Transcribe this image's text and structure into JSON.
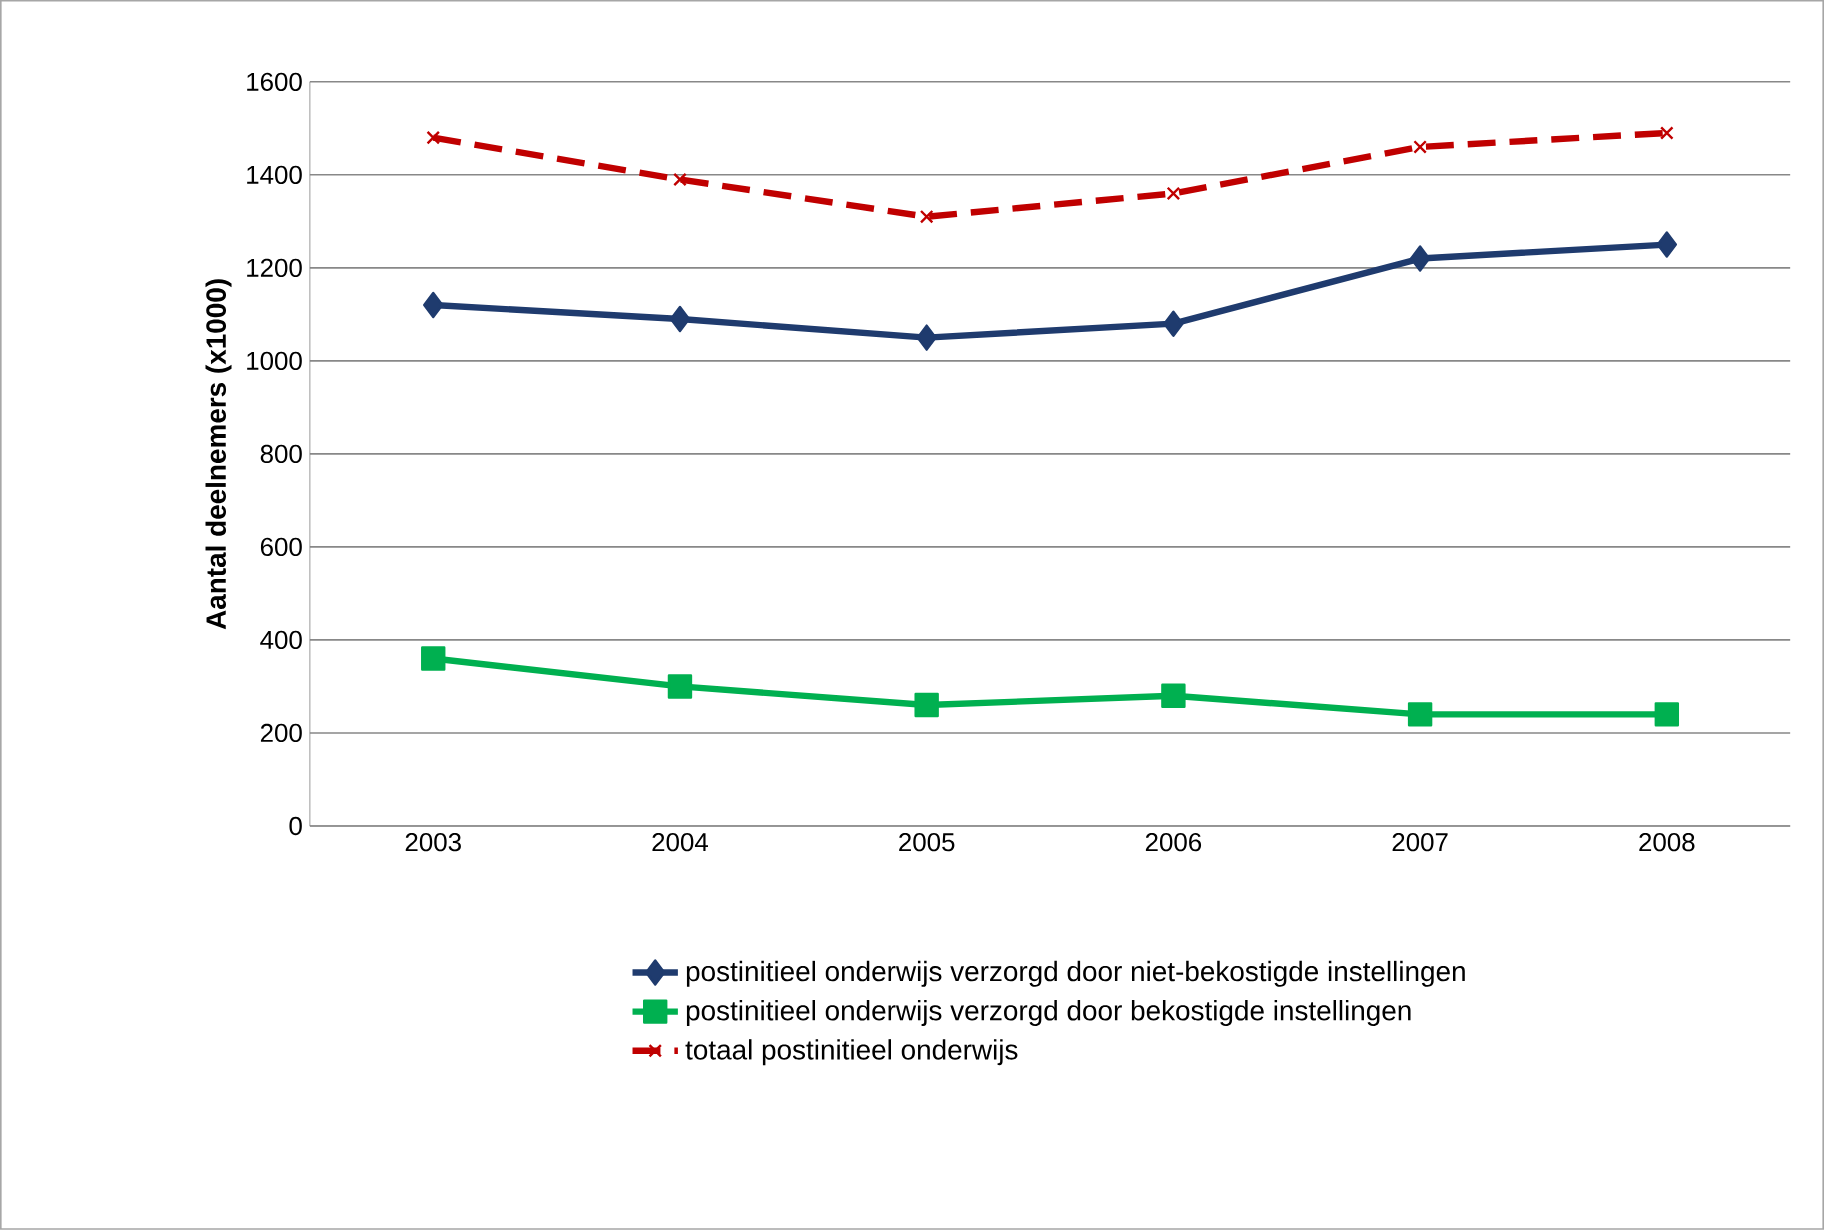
{
  "chart_data": {
    "type": "line",
    "ylabel": "Aantal deelnemers (x1000)",
    "categories": [
      "2003",
      "2004",
      "2005",
      "2006",
      "2007",
      "2008"
    ],
    "series": [
      {
        "name": "postinitieel onderwijs verzorgd door niet-bekostigde instellingen",
        "color": "#1f3b6e",
        "marker": "diamond",
        "line_style": "solid",
        "values": [
          1120,
          1090,
          1050,
          1080,
          1220,
          1250
        ]
      },
      {
        "name": "postinitieel onderwijs verzorgd door bekostigde instellingen",
        "color": "#00b050",
        "marker": "square",
        "line_style": "solid",
        "values": [
          360,
          300,
          260,
          280,
          240,
          240
        ]
      },
      {
        "name": "totaal postinitieel onderwijs",
        "color": "#c00000",
        "marker": "cross",
        "line_style": "dashed",
        "values": [
          1480,
          1390,
          1310,
          1360,
          1460,
          1490
        ]
      }
    ],
    "ylim": [
      0,
      1600
    ],
    "yticks": [
      0,
      200,
      400,
      600,
      800,
      1000,
      1200,
      1400,
      1600
    ],
    "grid": "y",
    "legend": "bottom"
  }
}
